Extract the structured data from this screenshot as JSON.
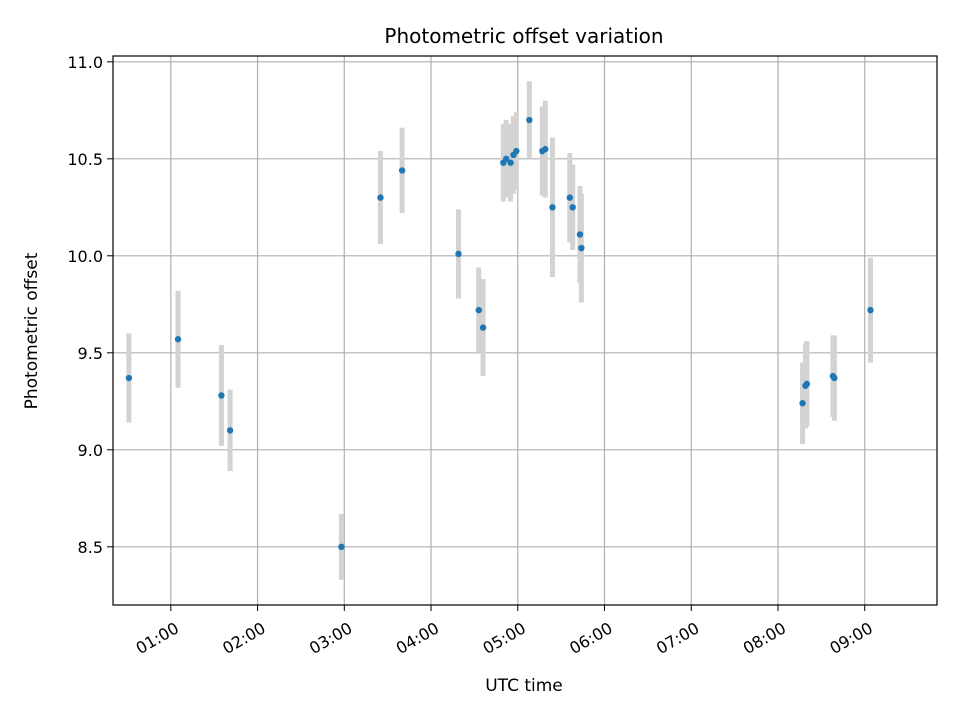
{
  "chart_data": {
    "type": "scatter",
    "title": "Photometric offset variation",
    "xlabel": "UTC time",
    "ylabel": "Photometric offset",
    "xlim": [
      "00:20",
      "09:50"
    ],
    "ylim": [
      8.2,
      11.03
    ],
    "grid": true,
    "x_ticks": [
      "01:00",
      "02:00",
      "03:00",
      "04:00",
      "05:00",
      "06:00",
      "07:00",
      "08:00",
      "09:00"
    ],
    "y_ticks": [
      "8.5",
      "9.0",
      "9.5",
      "10.0",
      "10.5",
      "11.0"
    ],
    "colors": {
      "marker": "#1f77b4",
      "errorbar": "#d3d3d3",
      "grid": "#b0b0b0"
    },
    "points": [
      {
        "x": "00:31",
        "y": 9.37,
        "err": 0.23
      },
      {
        "x": "01:05",
        "y": 9.57,
        "err": 0.25
      },
      {
        "x": "01:35",
        "y": 9.28,
        "err": 0.26
      },
      {
        "x": "01:41",
        "y": 9.1,
        "err": 0.21
      },
      {
        "x": "02:58",
        "y": 8.5,
        "err": 0.17
      },
      {
        "x": "03:25",
        "y": 10.3,
        "err": 0.24
      },
      {
        "x": "03:40",
        "y": 10.44,
        "err": 0.22
      },
      {
        "x": "04:19",
        "y": 10.01,
        "err": 0.23
      },
      {
        "x": "04:33",
        "y": 9.72,
        "err": 0.22
      },
      {
        "x": "04:36",
        "y": 9.63,
        "err": 0.25
      },
      {
        "x": "04:50",
        "y": 10.48,
        "err": 0.2
      },
      {
        "x": "04:52",
        "y": 10.5,
        "err": 0.2
      },
      {
        "x": "04:55",
        "y": 10.48,
        "err": 0.2
      },
      {
        "x": "04:57",
        "y": 10.52,
        "err": 0.2
      },
      {
        "x": "04:59",
        "y": 10.54,
        "err": 0.2
      },
      {
        "x": "05:08",
        "y": 10.7,
        "err": 0.2
      },
      {
        "x": "05:17",
        "y": 10.54,
        "err": 0.23
      },
      {
        "x": "05:19",
        "y": 10.55,
        "err": 0.25
      },
      {
        "x": "05:24",
        "y": 10.25,
        "err": 0.36
      },
      {
        "x": "05:36",
        "y": 10.3,
        "err": 0.23
      },
      {
        "x": "05:38",
        "y": 10.25,
        "err": 0.22
      },
      {
        "x": "05:43",
        "y": 10.11,
        "err": 0.25
      },
      {
        "x": "05:44",
        "y": 10.04,
        "err": 0.28
      },
      {
        "x": "08:17",
        "y": 9.24,
        "err": 0.21
      },
      {
        "x": "08:19",
        "y": 9.33,
        "err": 0.22
      },
      {
        "x": "08:20",
        "y": 9.34,
        "err": 0.22
      },
      {
        "x": "08:38",
        "y": 9.38,
        "err": 0.21
      },
      {
        "x": "08:39",
        "y": 9.37,
        "err": 0.22
      },
      {
        "x": "09:04",
        "y": 9.72,
        "err": 0.27
      }
    ]
  }
}
